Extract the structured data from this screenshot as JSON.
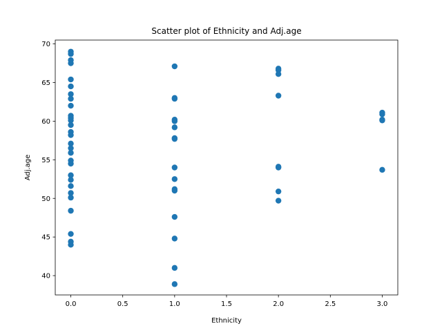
{
  "chart_data": {
    "type": "scatter",
    "title": "Scatter plot of Ethnicity and Adj.age",
    "xlabel": "Ethnicity",
    "ylabel": "Adj.age",
    "xlim": [
      -0.15,
      3.15
    ],
    "ylim": [
      37.5,
      70.5
    ],
    "xticks": [
      "0.0",
      "0.5",
      "1.0",
      "1.5",
      "2.0",
      "2.5",
      "3.0"
    ],
    "yticks": [
      "40",
      "45",
      "50",
      "55",
      "60",
      "65",
      "70"
    ],
    "grid": false,
    "marker_color": "#1f77b4",
    "series": [
      {
        "points": [
          [
            0,
            69.0
          ],
          [
            0,
            68.7
          ],
          [
            0,
            67.9
          ],
          [
            0,
            67.5
          ],
          [
            0,
            65.4
          ],
          [
            0,
            64.5
          ],
          [
            0,
            63.5
          ],
          [
            0,
            62.9
          ],
          [
            0,
            62.0
          ],
          [
            0,
            60.7
          ],
          [
            0,
            60.4
          ],
          [
            0,
            60.1
          ],
          [
            0,
            59.5
          ],
          [
            0,
            58.6
          ],
          [
            0,
            58.2
          ],
          [
            0,
            57.1
          ],
          [
            0,
            56.5
          ],
          [
            0,
            55.9
          ],
          [
            0,
            54.9
          ],
          [
            0,
            54.5
          ],
          [
            0,
            53.0
          ],
          [
            0,
            52.4
          ],
          [
            0,
            51.6
          ],
          [
            0,
            50.7
          ],
          [
            0,
            50.1
          ],
          [
            0,
            48.4
          ],
          [
            0,
            45.4
          ],
          [
            0,
            44.4
          ],
          [
            0,
            44.0
          ],
          [
            1,
            67.1
          ],
          [
            1,
            63.0
          ],
          [
            1,
            62.9
          ],
          [
            1,
            60.2
          ],
          [
            1,
            60.0
          ],
          [
            1,
            59.2
          ],
          [
            1,
            57.8
          ],
          [
            1,
            57.7
          ],
          [
            1,
            54.0
          ],
          [
            1,
            52.5
          ],
          [
            1,
            51.2
          ],
          [
            1,
            51.0
          ],
          [
            1,
            47.6
          ],
          [
            1,
            44.8
          ],
          [
            1,
            41.0
          ],
          [
            1,
            38.9
          ],
          [
            2,
            66.8
          ],
          [
            2,
            66.6
          ],
          [
            2,
            66.1
          ],
          [
            2,
            63.3
          ],
          [
            2,
            54.1
          ],
          [
            2,
            54.0
          ],
          [
            2,
            50.9
          ],
          [
            2,
            49.7
          ],
          [
            3,
            61.1
          ],
          [
            3,
            60.9
          ],
          [
            3,
            60.2
          ],
          [
            3,
            60.1
          ],
          [
            3,
            53.7
          ]
        ]
      }
    ]
  }
}
